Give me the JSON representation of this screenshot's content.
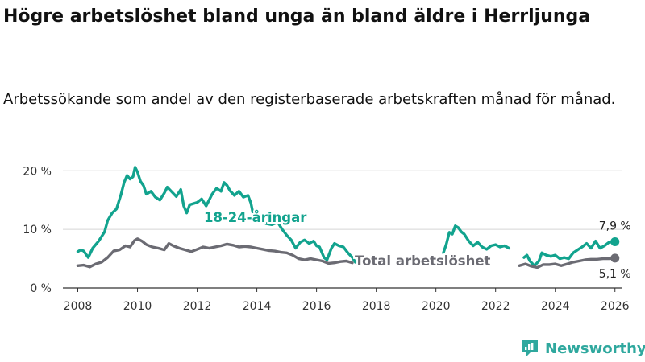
{
  "title": "Högre arbetslöshet bland unga än bland äldre i Herrljunga",
  "subtitle": "Arbetssökande som andel av den registerbaserade arbetskraften månad för månad.",
  "brand": {
    "name": "Newsworthy",
    "color": "#2fa89e"
  },
  "chart_data": {
    "type": "line",
    "title": "Högre arbetslöshet bland unga än bland äldre i Herrljunga",
    "subtitle": "Arbetssökande som andel av den registerbaserade arbetskraften månad för månad.",
    "xlabel": "",
    "ylabel": "",
    "xlim": [
      2007.5,
      2026.25
    ],
    "ylim": [
      0,
      21
    ],
    "x_ticks": [
      "2008",
      "2010",
      "2012",
      "2014",
      "2016",
      "2018",
      "2020",
      "2022",
      "2024",
      "2026"
    ],
    "y_ticks": [
      {
        "value": 0,
        "label": "0 %"
      },
      {
        "value": 10,
        "label": "10 %"
      },
      {
        "value": 20,
        "label": "20 %"
      }
    ],
    "grid": true,
    "series": [
      {
        "name": "18-24-åringar",
        "color": "#12a38e",
        "end_label": "7,9 %",
        "points": [
          [
            2008.0,
            6.2
          ],
          [
            2008.1,
            6.5
          ],
          [
            2008.2,
            6.3
          ],
          [
            2008.35,
            5.2
          ],
          [
            2008.5,
            6.8
          ],
          [
            2008.7,
            8.0
          ],
          [
            2008.9,
            9.6
          ],
          [
            2009.0,
            11.5
          ],
          [
            2009.15,
            12.8
          ],
          [
            2009.3,
            13.5
          ],
          [
            2009.45,
            16.0
          ],
          [
            2009.55,
            18.0
          ],
          [
            2009.65,
            19.2
          ],
          [
            2009.75,
            18.6
          ],
          [
            2009.85,
            19.0
          ],
          [
            2009.92,
            20.6
          ],
          [
            2010.0,
            19.8
          ],
          [
            2010.1,
            18.2
          ],
          [
            2010.2,
            17.5
          ],
          [
            2010.3,
            16.0
          ],
          [
            2010.45,
            16.5
          ],
          [
            2010.6,
            15.5
          ],
          [
            2010.75,
            15.0
          ],
          [
            2010.9,
            16.2
          ],
          [
            2011.0,
            17.2
          ],
          [
            2011.15,
            16.4
          ],
          [
            2011.3,
            15.6
          ],
          [
            2011.45,
            16.8
          ],
          [
            2011.55,
            14.0
          ],
          [
            2011.65,
            12.8
          ],
          [
            2011.75,
            14.2
          ],
          [
            2012.0,
            14.6
          ],
          [
            2012.15,
            15.2
          ],
          [
            2012.3,
            14.0
          ],
          [
            2012.5,
            16.0
          ],
          [
            2012.65,
            17.0
          ],
          [
            2012.8,
            16.5
          ],
          [
            2012.9,
            18.0
          ],
          [
            2013.0,
            17.5
          ],
          [
            2013.1,
            16.6
          ],
          [
            2013.25,
            15.8
          ],
          [
            2013.4,
            16.5
          ],
          [
            2013.55,
            15.5
          ],
          [
            2013.7,
            15.8
          ],
          [
            2013.8,
            14.5
          ],
          [
            2013.9,
            12.0
          ],
          [
            2014.1,
            12.0
          ],
          [
            2014.3,
            11.0
          ],
          [
            2014.5,
            10.8
          ],
          [
            2014.7,
            11.2
          ],
          [
            2014.85,
            10.0
          ],
          [
            2015.0,
            9.0
          ],
          [
            2015.15,
            8.2
          ],
          [
            2015.3,
            6.8
          ],
          [
            2015.45,
            7.8
          ],
          [
            2015.6,
            8.2
          ],
          [
            2015.75,
            7.6
          ],
          [
            2015.9,
            8.0
          ],
          [
            2016.0,
            7.2
          ],
          [
            2016.1,
            7.0
          ],
          [
            2016.25,
            5.2
          ],
          [
            2016.35,
            4.8
          ],
          [
            2016.5,
            6.8
          ],
          [
            2016.6,
            7.6
          ],
          [
            2016.75,
            7.2
          ],
          [
            2016.9,
            7.0
          ],
          [
            2017.05,
            6.0
          ],
          [
            2017.2,
            5.2
          ],
          [
            2017.3,
            4.4
          ],
          null,
          [
            2020.25,
            6.0
          ],
          [
            2020.35,
            7.5
          ],
          [
            2020.45,
            9.5
          ],
          [
            2020.55,
            9.2
          ],
          [
            2020.65,
            10.6
          ],
          [
            2020.75,
            10.3
          ],
          [
            2020.85,
            9.6
          ],
          [
            2020.95,
            9.2
          ],
          [
            2021.1,
            8.0
          ],
          [
            2021.25,
            7.2
          ],
          [
            2021.4,
            7.8
          ],
          [
            2021.55,
            7.0
          ],
          [
            2021.7,
            6.6
          ],
          [
            2021.85,
            7.2
          ],
          [
            2022.0,
            7.4
          ],
          [
            2022.15,
            7.0
          ],
          [
            2022.3,
            7.2
          ],
          [
            2022.45,
            6.8
          ],
          null,
          [
            2022.95,
            5.2
          ],
          [
            2023.05,
            5.6
          ],
          [
            2023.15,
            4.6
          ],
          [
            2023.3,
            3.8
          ],
          [
            2023.45,
            4.6
          ],
          [
            2023.55,
            6.0
          ],
          [
            2023.7,
            5.6
          ],
          [
            2023.85,
            5.4
          ],
          [
            2024.0,
            5.6
          ],
          [
            2024.15,
            5.0
          ],
          [
            2024.3,
            5.2
          ],
          [
            2024.45,
            5.0
          ],
          [
            2024.6,
            6.0
          ],
          [
            2024.75,
            6.5
          ],
          [
            2024.9,
            7.0
          ],
          [
            2025.05,
            7.6
          ],
          [
            2025.2,
            6.8
          ],
          [
            2025.35,
            8.0
          ],
          [
            2025.5,
            6.8
          ],
          [
            2025.65,
            7.2
          ],
          [
            2025.8,
            7.8
          ],
          [
            2026.0,
            7.9
          ]
        ]
      },
      {
        "name": "Total arbetslöshet",
        "color": "#6b6b73",
        "end_label": "5,1 %",
        "points": [
          [
            2008.0,
            3.8
          ],
          [
            2008.2,
            3.9
          ],
          [
            2008.4,
            3.6
          ],
          [
            2008.6,
            4.1
          ],
          [
            2008.8,
            4.4
          ],
          [
            2009.0,
            5.2
          ],
          [
            2009.2,
            6.3
          ],
          [
            2009.4,
            6.5
          ],
          [
            2009.6,
            7.2
          ],
          [
            2009.75,
            7.0
          ],
          [
            2009.9,
            8.1
          ],
          [
            2010.0,
            8.4
          ],
          [
            2010.15,
            8.0
          ],
          [
            2010.3,
            7.4
          ],
          [
            2010.5,
            7.0
          ],
          [
            2010.7,
            6.8
          ],
          [
            2010.9,
            6.5
          ],
          [
            2011.05,
            7.6
          ],
          [
            2011.2,
            7.2
          ],
          [
            2011.4,
            6.8
          ],
          [
            2011.6,
            6.5
          ],
          [
            2011.8,
            6.2
          ],
          [
            2012.0,
            6.6
          ],
          [
            2012.2,
            7.0
          ],
          [
            2012.4,
            6.8
          ],
          [
            2012.6,
            7.0
          ],
          [
            2012.8,
            7.2
          ],
          [
            2013.0,
            7.5
          ],
          [
            2013.2,
            7.3
          ],
          [
            2013.4,
            7.0
          ],
          [
            2013.6,
            7.1
          ],
          [
            2013.8,
            7.0
          ],
          [
            2014.0,
            6.8
          ],
          [
            2014.2,
            6.6
          ],
          [
            2014.4,
            6.4
          ],
          [
            2014.6,
            6.3
          ],
          [
            2014.8,
            6.1
          ],
          [
            2015.0,
            6.0
          ],
          [
            2015.2,
            5.6
          ],
          [
            2015.4,
            5.0
          ],
          [
            2015.6,
            4.8
          ],
          [
            2015.8,
            5.0
          ],
          [
            2016.0,
            4.8
          ],
          [
            2016.2,
            4.6
          ],
          [
            2016.4,
            4.2
          ],
          [
            2016.6,
            4.3
          ],
          [
            2016.8,
            4.5
          ],
          [
            2017.0,
            4.6
          ],
          [
            2017.2,
            4.3
          ],
          null,
          [
            2022.8,
            3.8
          ],
          [
            2023.0,
            4.1
          ],
          [
            2023.2,
            3.7
          ],
          [
            2023.4,
            3.5
          ],
          [
            2023.6,
            4.0
          ],
          [
            2023.8,
            4.0
          ],
          [
            2024.0,
            4.1
          ],
          [
            2024.2,
            3.8
          ],
          [
            2024.4,
            4.1
          ],
          [
            2024.6,
            4.4
          ],
          [
            2024.8,
            4.6
          ],
          [
            2025.0,
            4.8
          ],
          [
            2025.2,
            4.9
          ],
          [
            2025.4,
            4.9
          ],
          [
            2025.6,
            5.0
          ],
          [
            2025.8,
            5.0
          ],
          [
            2026.0,
            5.1
          ]
        ]
      }
    ]
  }
}
